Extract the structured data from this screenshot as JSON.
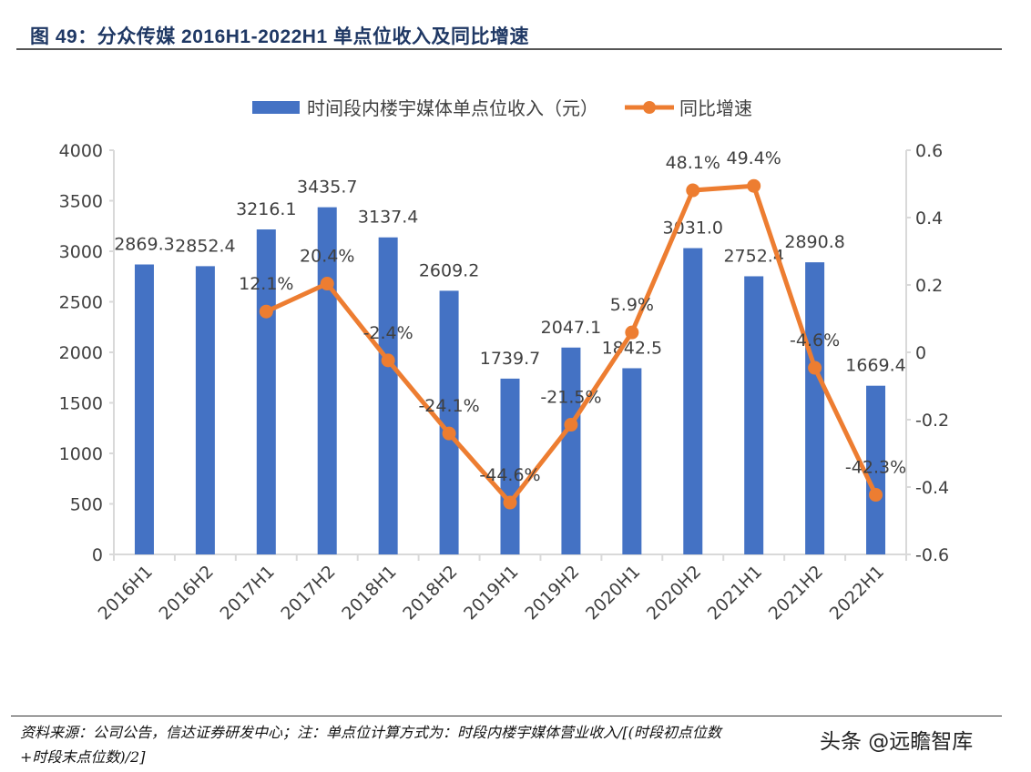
{
  "header": {
    "title": "图 49：分众传媒 2016H1-2022H1 单点位收入及同比增速"
  },
  "footer": {
    "source_line1": "资料来源：公司公告，信达证券研发中心；注：单点位计算方式为：时段内楼宇媒体营业收入/[(时段初点位数",
    "source_line2": "+时段末点位数)/2]",
    "watermark": "头条 @远瞻智库"
  },
  "colors": {
    "bar": "#4472c4",
    "line": "#ed7d31",
    "axis": "#d9d9d9",
    "text": "#404040",
    "title": "#1f3864"
  },
  "chart_data": {
    "type": "bar",
    "title": "",
    "xlabel": "",
    "ylabel": "",
    "y2label": "",
    "categories": [
      "2016H1",
      "2016H2",
      "2017H1",
      "2017H2",
      "2018H1",
      "2018H2",
      "2019H1",
      "2019H2",
      "2020H1",
      "2020H2",
      "2021H1",
      "2021H2",
      "2022H1"
    ],
    "series": [
      {
        "name": "时间段内楼宇媒体单点位收入（元）",
        "type": "bar",
        "axis": "left",
        "values": [
          2869.3,
          2852.4,
          3216.1,
          3435.7,
          3137.4,
          2609.2,
          1739.7,
          2047.1,
          1842.5,
          3031.0,
          2752.4,
          2890.8,
          1669.4
        ],
        "labels": [
          "2869.3",
          "2852.4",
          "3216.1",
          "3435.7",
          "3137.4",
          "2609.2",
          "1739.7",
          "2047.1",
          "1842.5",
          "3031.0",
          "2752.4",
          "2890.8",
          "1669.4"
        ]
      },
      {
        "name": "同比增速",
        "type": "line",
        "axis": "right",
        "values": [
          null,
          null,
          0.121,
          0.204,
          -0.024,
          -0.241,
          -0.446,
          -0.215,
          0.059,
          0.481,
          0.494,
          -0.046,
          -0.423
        ],
        "labels": [
          null,
          null,
          "12.1%",
          "20.4%",
          "-2.4%",
          "-24.1%",
          "-44.6%",
          "-21.5%",
          "5.9%",
          "48.1%",
          "49.4%",
          "-4.6%",
          "-42.3%"
        ]
      }
    ],
    "ylim": [
      0,
      4000
    ],
    "yticks": [
      0,
      500,
      1000,
      1500,
      2000,
      2500,
      3000,
      3500,
      4000
    ],
    "ytick_labels": [
      "0",
      "500",
      "1000",
      "1500",
      "2000",
      "2500",
      "3000",
      "3500",
      "4000"
    ],
    "y2lim": [
      -0.6,
      0.6
    ],
    "y2ticks": [
      -0.6,
      -0.4,
      -0.2,
      0,
      0.2,
      0.4,
      0.6
    ],
    "y2tick_labels": [
      "-0.6",
      "-0.4",
      "-0.2",
      "0",
      "0.2",
      "0.4",
      "0.6"
    ],
    "grid": false,
    "legend_position": "top"
  }
}
